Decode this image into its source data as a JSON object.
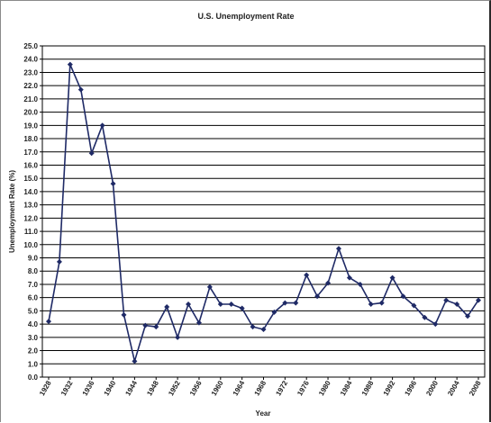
{
  "chart_data": {
    "type": "line",
    "title": "U.S. Unemployment Rate",
    "xlabel": "Year",
    "ylabel": "Unemployment Rate (%)",
    "ylim": [
      0,
      25
    ],
    "ytick_step": 1,
    "yticks": [
      "0.0",
      "1.0",
      "2.0",
      "3.0",
      "4.0",
      "5.0",
      "6.0",
      "7.0",
      "8.0",
      "9.0",
      "10.0",
      "11.0",
      "12.0",
      "13.0",
      "14.0",
      "15.0",
      "16.0",
      "17.0",
      "18.0",
      "19.0",
      "20.0",
      "21.0",
      "22.0",
      "23.0",
      "24.0",
      "25.0"
    ],
    "xticks": [
      "1928",
      "1932",
      "1936",
      "1940",
      "1944",
      "1948",
      "1952",
      "1956",
      "1960",
      "1964",
      "1968",
      "1972",
      "1976",
      "1980",
      "1984",
      "1988",
      "1992",
      "1996",
      "2000",
      "2004",
      "2008"
    ],
    "xlim": [
      1928,
      2008
    ],
    "grid": "horizontal",
    "line_color": "#1f2a66",
    "series": [
      {
        "x": [
          1928,
          1930,
          1932,
          1934,
          1936,
          1938,
          1940,
          1942,
          1944,
          1946,
          1948,
          1950,
          1952,
          1954,
          1956,
          1958,
          1960,
          1962,
          1964,
          1966,
          1968,
          1970,
          1972,
          1974,
          1976,
          1978,
          1980,
          1982,
          1984,
          1986,
          1988,
          1990,
          1992,
          1994,
          1996,
          1998,
          2000,
          2002,
          2004,
          2006,
          2008
        ],
        "values": [
          4.2,
          8.7,
          23.6,
          21.7,
          16.9,
          19.0,
          14.6,
          4.7,
          1.2,
          3.9,
          3.8,
          5.3,
          3.0,
          5.5,
          4.1,
          6.8,
          5.5,
          5.5,
          5.2,
          3.8,
          3.6,
          4.9,
          5.6,
          5.6,
          7.7,
          6.1,
          7.1,
          9.7,
          7.5,
          7.0,
          5.5,
          5.6,
          7.5,
          6.1,
          5.4,
          4.5,
          4.0,
          5.8,
          5.5,
          4.6,
          5.8
        ]
      }
    ]
  }
}
